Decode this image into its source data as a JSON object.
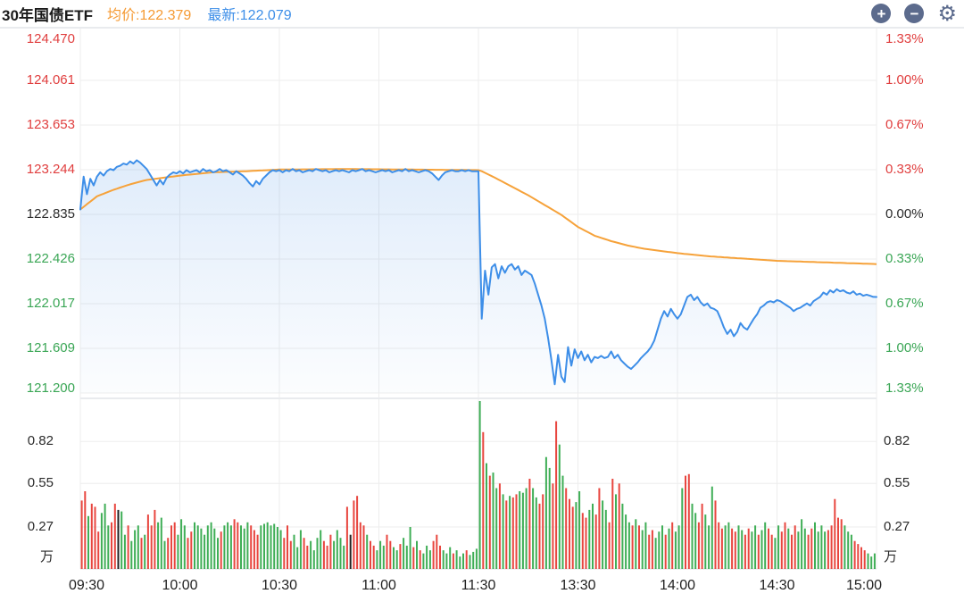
{
  "header": {
    "title": "30年国债ETF",
    "avg_label": "均价:122.379",
    "last_label": "最新:122.079"
  },
  "icons": {
    "zoom_in_symbol": "+",
    "zoom_out_symbol": "−",
    "settings_symbol": "⚙"
  },
  "colors": {
    "price_line": "#3d8ee8",
    "avg_line": "#f6a23a",
    "up_bar": "#e8463f",
    "down_bar": "#3fae56",
    "flat_bar": "#222222",
    "tick_red": "#e03e3e",
    "tick_green": "#3aa655",
    "tick_dark": "#2b2b2b",
    "grid": "#ededed",
    "panel_border": "#e9ebee",
    "fill_top": "rgba(76,146,229,0.26)",
    "fill_bottom": "rgba(76,146,229,0.02)"
  },
  "axes": {
    "price_ticks": [
      "124.470",
      "124.061",
      "123.653",
      "123.244",
      "122.835",
      "122.426",
      "122.017",
      "121.609",
      "121.200"
    ],
    "pct_ticks": [
      "1.33%",
      "1.00%",
      "0.67%",
      "0.33%",
      "0.00%",
      "0.33%",
      "0.67%",
      "1.00%",
      "1.33%"
    ],
    "volume_ticks": [
      "0.82",
      "0.55",
      "0.27"
    ],
    "volume_unit": "万",
    "time_ticks": [
      "09:30",
      "10:00",
      "10:30",
      "11:00",
      "11:30",
      "13:30",
      "14:00",
      "14:30",
      "15:00"
    ]
  },
  "chart_data": {
    "type": "line",
    "title": "30年国债ETF 分时走势",
    "prev_close": 122.835,
    "avg_price": 122.379,
    "last_price": 122.079,
    "price_ylim": [
      121.2,
      124.47
    ],
    "pct_ylim": [
      -1.33,
      1.33
    ],
    "volume_ylim_wan": [
      0,
      1.1
    ],
    "session_slots": {
      "morning": [
        0,
        120
      ],
      "afternoon": [
        121,
        240
      ],
      "slot_minutes": 1
    },
    "time_tick_slots": [
      0,
      30,
      60,
      90,
      120,
      150,
      180,
      210,
      240
    ],
    "price_series": [
      122.88,
      123.18,
      123.02,
      123.16,
      123.1,
      123.18,
      123.22,
      123.19,
      123.23,
      123.25,
      123.24,
      123.27,
      123.28,
      123.3,
      123.29,
      123.32,
      123.3,
      123.33,
      123.31,
      123.28,
      123.25,
      123.2,
      123.15,
      123.1,
      123.15,
      123.11,
      123.17,
      123.2,
      123.22,
      123.21,
      123.23,
      123.21,
      123.24,
      123.22,
      123.23,
      123.24,
      123.22,
      123.25,
      123.23,
      123.24,
      123.22,
      123.23,
      123.25,
      123.23,
      123.24,
      123.22,
      123.2,
      123.23,
      123.21,
      123.19,
      123.16,
      123.12,
      123.09,
      123.14,
      123.11,
      123.16,
      123.19,
      123.22,
      123.24,
      123.23,
      123.24,
      123.22,
      123.24,
      123.23,
      123.25,
      123.23,
      123.24,
      123.22,
      123.23,
      123.24,
      123.23,
      123.25,
      123.24,
      123.23,
      123.24,
      123.22,
      123.23,
      123.24,
      123.23,
      123.24,
      123.23,
      123.22,
      123.24,
      123.23,
      123.24,
      123.25,
      123.23,
      123.24,
      123.23,
      123.22,
      123.23,
      123.24,
      123.23,
      123.24,
      123.22,
      123.23,
      123.24,
      123.23,
      123.25,
      123.23,
      123.24,
      123.23,
      123.22,
      123.23,
      123.24,
      123.23,
      123.21,
      123.18,
      123.15,
      123.19,
      123.22,
      123.23,
      123.24,
      123.23,
      123.23,
      123.24,
      123.23,
      123.24,
      123.23,
      123.23,
      123.23,
      121.88,
      122.32,
      122.1,
      122.35,
      122.38,
      122.25,
      122.36,
      122.3,
      122.36,
      122.38,
      122.33,
      122.36,
      122.28,
      122.32,
      122.3,
      122.28,
      122.2,
      122.1,
      122.0,
      121.88,
      121.7,
      121.5,
      121.28,
      121.55,
      121.35,
      121.3,
      121.62,
      121.45,
      121.6,
      121.52,
      121.58,
      121.5,
      121.55,
      121.48,
      121.53,
      121.52,
      121.54,
      121.52,
      121.53,
      121.58,
      121.52,
      121.55,
      121.5,
      121.47,
      121.44,
      121.42,
      121.45,
      121.48,
      121.52,
      121.55,
      121.58,
      121.62,
      121.68,
      121.78,
      121.88,
      121.95,
      121.9,
      121.97,
      121.92,
      121.88,
      121.92,
      122.0,
      122.08,
      122.1,
      122.05,
      122.08,
      122.03,
      122.0,
      122.02,
      121.98,
      121.97,
      121.95,
      121.88,
      121.8,
      121.74,
      121.78,
      121.72,
      121.76,
      121.84,
      121.8,
      121.78,
      121.83,
      121.88,
      121.92,
      121.98,
      122.0,
      122.03,
      122.04,
      122.03,
      122.05,
      122.04,
      122.02,
      122.0,
      121.98,
      121.95,
      121.97,
      121.98,
      122.0,
      122.02,
      122.0,
      122.04,
      122.06,
      122.08,
      122.12,
      122.1,
      122.14,
      122.12,
      122.15,
      122.13,
      122.14,
      122.12,
      122.11,
      122.13,
      122.1,
      122.11,
      122.09,
      122.1,
      122.09,
      122.08,
      122.079
    ],
    "avg_anchors": [
      [
        0,
        122.88
      ],
      [
        5,
        123.0
      ],
      [
        10,
        123.06
      ],
      [
        15,
        123.11
      ],
      [
        20,
        123.15
      ],
      [
        25,
        123.17
      ],
      [
        30,
        123.19
      ],
      [
        40,
        123.22
      ],
      [
        50,
        123.23
      ],
      [
        60,
        123.245
      ],
      [
        80,
        123.25
      ],
      [
        100,
        123.245
      ],
      [
        120,
        123.24
      ],
      [
        121,
        123.23
      ],
      [
        125,
        123.17
      ],
      [
        130,
        123.09
      ],
      [
        135,
        123.01
      ],
      [
        140,
        122.92
      ],
      [
        145,
        122.83
      ],
      [
        150,
        122.72
      ],
      [
        155,
        122.64
      ],
      [
        160,
        122.59
      ],
      [
        165,
        122.55
      ],
      [
        170,
        122.52
      ],
      [
        175,
        122.5
      ],
      [
        180,
        122.48
      ],
      [
        190,
        122.45
      ],
      [
        200,
        122.43
      ],
      [
        210,
        122.41
      ],
      [
        220,
        122.4
      ],
      [
        230,
        122.39
      ],
      [
        240,
        122.38
      ]
    ],
    "volume_series_wan": [
      0.44,
      0.5,
      0.34,
      0.42,
      0.4,
      0.24,
      0.36,
      0.42,
      0.28,
      0.3,
      0.42,
      0.38,
      0.37,
      0.22,
      0.28,
      0.18,
      0.25,
      0.28,
      0.2,
      0.22,
      0.35,
      0.28,
      0.38,
      0.3,
      0.33,
      0.18,
      0.2,
      0.28,
      0.3,
      0.22,
      0.32,
      0.28,
      0.2,
      0.24,
      0.3,
      0.28,
      0.26,
      0.22,
      0.28,
      0.3,
      0.26,
      0.2,
      0.24,
      0.28,
      0.3,
      0.28,
      0.32,
      0.3,
      0.28,
      0.26,
      0.3,
      0.28,
      0.25,
      0.22,
      0.28,
      0.29,
      0.3,
      0.28,
      0.29,
      0.27,
      0.25,
      0.2,
      0.28,
      0.18,
      0.22,
      0.14,
      0.25,
      0.2,
      0.15,
      0.18,
      0.12,
      0.2,
      0.25,
      0.18,
      0.15,
      0.22,
      0.18,
      0.25,
      0.2,
      0.15,
      0.4,
      0.22,
      0.44,
      0.47,
      0.3,
      0.28,
      0.22,
      0.18,
      0.15,
      0.12,
      0.18,
      0.15,
      0.22,
      0.18,
      0.14,
      0.12,
      0.16,
      0.2,
      0.15,
      0.27,
      0.14,
      0.18,
      0.12,
      0.1,
      0.15,
      0.12,
      0.18,
      0.22,
      0.15,
      0.12,
      0.1,
      0.14,
      0.1,
      0.12,
      0.08,
      0.1,
      0.12,
      0.09,
      0.11,
      0.13,
      1.08,
      0.88,
      0.68,
      0.6,
      0.62,
      0.52,
      0.55,
      0.48,
      0.44,
      0.47,
      0.46,
      0.48,
      0.5,
      0.49,
      0.52,
      0.58,
      0.52,
      0.46,
      0.42,
      0.48,
      0.72,
      0.65,
      0.55,
      0.95,
      0.8,
      0.6,
      0.52,
      0.45,
      0.4,
      0.43,
      0.5,
      0.36,
      0.33,
      0.38,
      0.42,
      0.35,
      0.52,
      0.44,
      0.38,
      0.3,
      0.58,
      0.48,
      0.55,
      0.42,
      0.35,
      0.3,
      0.28,
      0.32,
      0.28,
      0.25,
      0.3,
      0.22,
      0.25,
      0.2,
      0.24,
      0.28,
      0.22,
      0.26,
      0.3,
      0.24,
      0.28,
      0.52,
      0.6,
      0.61,
      0.42,
      0.36,
      0.3,
      0.42,
      0.35,
      0.28,
      0.53,
      0.44,
      0.3,
      0.26,
      0.28,
      0.3,
      0.26,
      0.24,
      0.28,
      0.25,
      0.22,
      0.26,
      0.24,
      0.28,
      0.22,
      0.25,
      0.3,
      0.26,
      0.22,
      0.2,
      0.28,
      0.24,
      0.3,
      0.26,
      0.22,
      0.28,
      0.24,
      0.32,
      0.26,
      0.22,
      0.26,
      0.3,
      0.24,
      0.28,
      0.24,
      0.25,
      0.28,
      0.45,
      0.33,
      0.32,
      0.28,
      0.24,
      0.22,
      0.18,
      0.16,
      0.14,
      0.12,
      0.1,
      0.08,
      0.1
    ],
    "volume_colors": "rrgrrrgggrrkggrgggrgrrrgggrrrgggrrggggggggrgggrrgggrrrgggggggrrrgggrrggggrrrggggrkrrrrgrrgggrrggrgggrgrgggrrrgggrgggrggggrgrggrgrgrrgggrggrrggrrggrrrggrrggrrggrrgrgggrgrggrrgggrgrgggrrggrrgggrrrggrrggrrggrggrrggrrgrrgggrrggggrrrrrgggrrrrggggr"
  }
}
